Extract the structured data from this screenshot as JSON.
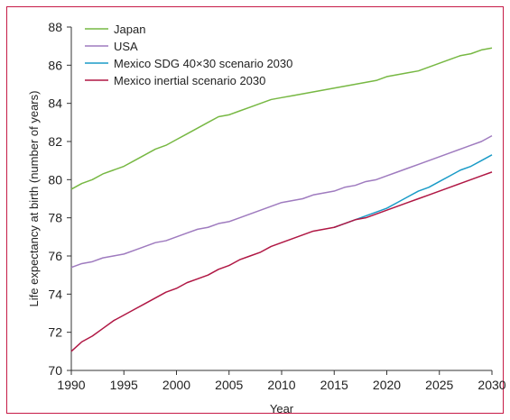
{
  "chart_data": {
    "type": "line",
    "xlabel": "Year",
    "ylabel": "Life expectancy at birth (number of years)",
    "xlim": [
      1990,
      2030
    ],
    "ylim": [
      70,
      88
    ],
    "xticks": [
      1990,
      1995,
      2000,
      2005,
      2010,
      2015,
      2020,
      2025,
      2030
    ],
    "yticks": [
      70,
      72,
      74,
      76,
      78,
      80,
      82,
      84,
      86,
      88
    ],
    "legend_position": "top-left",
    "series": [
      {
        "name": "Japan",
        "color": "#77b843",
        "points": [
          [
            1990,
            79.5
          ],
          [
            1991,
            79.8
          ],
          [
            1992,
            80.0
          ],
          [
            1993,
            80.3
          ],
          [
            1994,
            80.5
          ],
          [
            1995,
            80.7
          ],
          [
            1996,
            81.0
          ],
          [
            1997,
            81.3
          ],
          [
            1998,
            81.6
          ],
          [
            1999,
            81.8
          ],
          [
            2000,
            82.1
          ],
          [
            2001,
            82.4
          ],
          [
            2002,
            82.7
          ],
          [
            2003,
            83.0
          ],
          [
            2004,
            83.3
          ],
          [
            2005,
            83.4
          ],
          [
            2006,
            83.6
          ],
          [
            2007,
            83.8
          ],
          [
            2008,
            84.0
          ],
          [
            2009,
            84.2
          ],
          [
            2010,
            84.3
          ],
          [
            2011,
            84.4
          ],
          [
            2012,
            84.5
          ],
          [
            2013,
            84.6
          ],
          [
            2014,
            84.7
          ],
          [
            2015,
            84.8
          ],
          [
            2016,
            84.9
          ],
          [
            2017,
            85.0
          ],
          [
            2018,
            85.1
          ],
          [
            2019,
            85.2
          ],
          [
            2020,
            85.4
          ],
          [
            2021,
            85.5
          ],
          [
            2022,
            85.6
          ],
          [
            2023,
            85.7
          ],
          [
            2024,
            85.9
          ],
          [
            2025,
            86.1
          ],
          [
            2026,
            86.3
          ],
          [
            2027,
            86.5
          ],
          [
            2028,
            86.6
          ],
          [
            2029,
            86.8
          ],
          [
            2030,
            86.9
          ]
        ]
      },
      {
        "name": "USA",
        "color": "#9f7bbf",
        "points": [
          [
            1990,
            75.4
          ],
          [
            1991,
            75.6
          ],
          [
            1992,
            75.7
          ],
          [
            1993,
            75.9
          ],
          [
            1994,
            76.0
          ],
          [
            1995,
            76.1
          ],
          [
            1996,
            76.3
          ],
          [
            1997,
            76.5
          ],
          [
            1998,
            76.7
          ],
          [
            1999,
            76.8
          ],
          [
            2000,
            77.0
          ],
          [
            2001,
            77.2
          ],
          [
            2002,
            77.4
          ],
          [
            2003,
            77.5
          ],
          [
            2004,
            77.7
          ],
          [
            2005,
            77.8
          ],
          [
            2006,
            78.0
          ],
          [
            2007,
            78.2
          ],
          [
            2008,
            78.4
          ],
          [
            2009,
            78.6
          ],
          [
            2010,
            78.8
          ],
          [
            2011,
            78.9
          ],
          [
            2012,
            79.0
          ],
          [
            2013,
            79.2
          ],
          [
            2014,
            79.3
          ],
          [
            2015,
            79.4
          ],
          [
            2016,
            79.6
          ],
          [
            2017,
            79.7
          ],
          [
            2018,
            79.9
          ],
          [
            2019,
            80.0
          ],
          [
            2020,
            80.2
          ],
          [
            2021,
            80.4
          ],
          [
            2022,
            80.6
          ],
          [
            2023,
            80.8
          ],
          [
            2024,
            81.0
          ],
          [
            2025,
            81.2
          ],
          [
            2026,
            81.4
          ],
          [
            2027,
            81.6
          ],
          [
            2028,
            81.8
          ],
          [
            2029,
            82.0
          ],
          [
            2030,
            82.3
          ]
        ]
      },
      {
        "name": "Mexico SDG 40×30 scenario 2030",
        "color": "#1a9bc7",
        "points": [
          [
            2015,
            77.5
          ],
          [
            2016,
            77.7
          ],
          [
            2017,
            77.9
          ],
          [
            2018,
            78.1
          ],
          [
            2019,
            78.3
          ],
          [
            2020,
            78.5
          ],
          [
            2021,
            78.8
          ],
          [
            2022,
            79.1
          ],
          [
            2023,
            79.4
          ],
          [
            2024,
            79.6
          ],
          [
            2025,
            79.9
          ],
          [
            2026,
            80.2
          ],
          [
            2027,
            80.5
          ],
          [
            2028,
            80.7
          ],
          [
            2029,
            81.0
          ],
          [
            2030,
            81.3
          ]
        ]
      },
      {
        "name": "Mexico inertial scenario 2030",
        "color": "#b01744",
        "points": [
          [
            1990,
            71.0
          ],
          [
            1991,
            71.5
          ],
          [
            1992,
            71.8
          ],
          [
            1993,
            72.2
          ],
          [
            1994,
            72.6
          ],
          [
            1995,
            72.9
          ],
          [
            1996,
            73.2
          ],
          [
            1997,
            73.5
          ],
          [
            1998,
            73.8
          ],
          [
            1999,
            74.1
          ],
          [
            2000,
            74.3
          ],
          [
            2001,
            74.6
          ],
          [
            2002,
            74.8
          ],
          [
            2003,
            75.0
          ],
          [
            2004,
            75.3
          ],
          [
            2005,
            75.5
          ],
          [
            2006,
            75.8
          ],
          [
            2007,
            76.0
          ],
          [
            2008,
            76.2
          ],
          [
            2009,
            76.5
          ],
          [
            2010,
            76.7
          ],
          [
            2011,
            76.9
          ],
          [
            2012,
            77.1
          ],
          [
            2013,
            77.3
          ],
          [
            2014,
            77.4
          ],
          [
            2015,
            77.5
          ],
          [
            2016,
            77.7
          ],
          [
            2017,
            77.9
          ],
          [
            2018,
            78.0
          ],
          [
            2019,
            78.2
          ],
          [
            2020,
            78.4
          ],
          [
            2021,
            78.6
          ],
          [
            2022,
            78.8
          ],
          [
            2023,
            79.0
          ],
          [
            2024,
            79.2
          ],
          [
            2025,
            79.4
          ],
          [
            2026,
            79.6
          ],
          [
            2027,
            79.8
          ],
          [
            2028,
            80.0
          ],
          [
            2029,
            80.2
          ],
          [
            2030,
            80.4
          ]
        ]
      }
    ]
  },
  "colors": {
    "frame": "#c61b47",
    "axis": "#333333",
    "text": "#222222"
  }
}
